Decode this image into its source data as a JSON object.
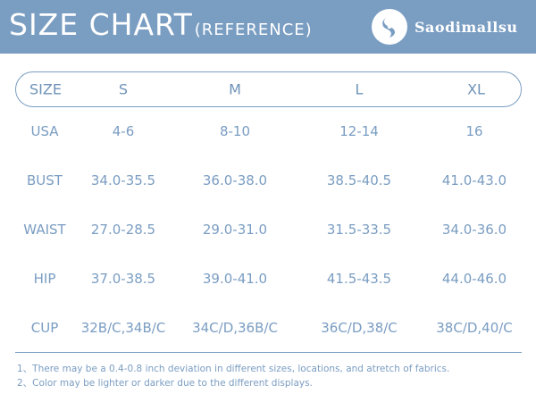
{
  "header": {
    "title": "SIZE CHART",
    "subtitle": "(REFERENCE)",
    "brand": "Saodimallsu"
  },
  "table": {
    "columns": [
      "SIZE",
      "S",
      "M",
      "L",
      "XL"
    ],
    "rows": [
      {
        "label": "USA",
        "values": [
          "4-6",
          "8-10",
          "12-14",
          "16"
        ]
      },
      {
        "label": "BUST",
        "values": [
          "34.0-35.5",
          "36.0-38.0",
          "38.5-40.5",
          "41.0-43.0"
        ]
      },
      {
        "label": "WAIST",
        "values": [
          "27.0-28.5",
          "29.0-31.0",
          "31.5-33.5",
          "34.0-36.0"
        ]
      },
      {
        "label": "HIP",
        "values": [
          "37.0-38.5",
          "39.0-41.0",
          "41.5-43.5",
          "44.0-46.0"
        ]
      },
      {
        "label": "CUP",
        "values": [
          "32B/C,34B/C",
          "34C/D,36B/C",
          "36C/D,38/C",
          "38C/D,40/C"
        ]
      }
    ]
  },
  "notes": [
    "1、There may be a 0.4-0.8 inch deviation in different sizes, locations, and atretch of fabrics.",
    "2、Color may be lighter or darker due to the different displays."
  ],
  "colors": {
    "banner": "#7a9dc2",
    "text": "#7a9dc2"
  },
  "icons": {
    "brand_logo": "brand-logo-icon"
  }
}
